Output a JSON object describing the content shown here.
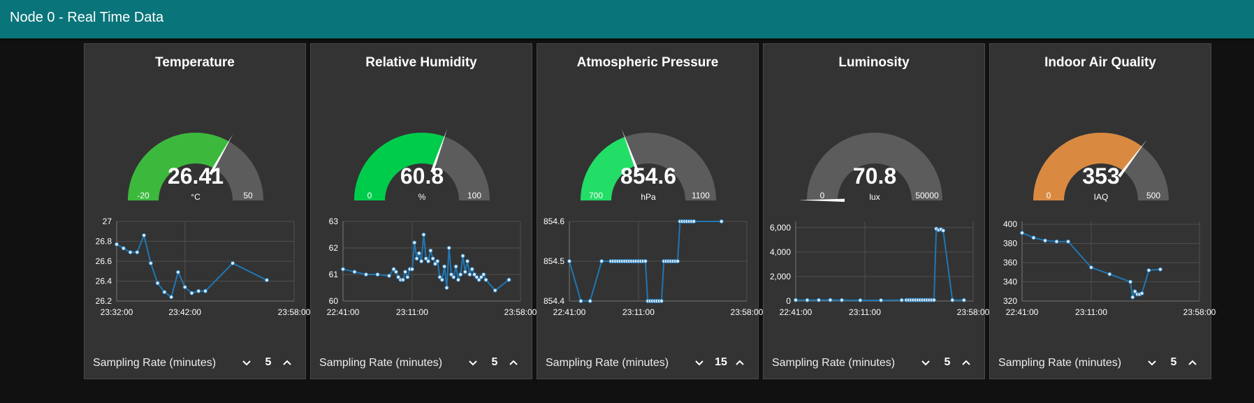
{
  "header": {
    "title": "Node 0 - Real Time Data"
  },
  "footer_label": "Sampling Rate (minutes)",
  "panels": [
    {
      "title": "Temperature",
      "gauge": {
        "value": 26.41,
        "value_text": "26.41",
        "min": -20,
        "max": 50,
        "min_text": "-20",
        "max_text": "50",
        "unit": "°C",
        "color": "#3cb93c"
      },
      "chart_data": {
        "type": "line",
        "x_ticks": [
          "23:32:00",
          "23:42:00",
          "23:58:00"
        ],
        "y_ticks": [
          "27",
          "26.8",
          "26.6",
          "26.4",
          "26.2"
        ],
        "xlim": [
          0,
          26
        ],
        "ylim": [
          26.2,
          27
        ],
        "x_tick_values": [
          0,
          10,
          26
        ],
        "y_tick_values": [
          27,
          26.8,
          26.6,
          26.4,
          26.2
        ],
        "x": [
          0,
          1,
          2,
          3,
          4,
          5,
          6,
          7,
          8,
          9,
          10,
          11,
          12,
          13,
          17,
          22
        ],
        "values": [
          26.77,
          26.73,
          26.69,
          26.69,
          26.86,
          26.58,
          26.38,
          26.29,
          26.24,
          26.49,
          26.34,
          26.28,
          26.3,
          26.3,
          26.58,
          26.41
        ],
        "color": "#1f77b4"
      },
      "sampling_rate": "5"
    },
    {
      "title": "Relative Humidity",
      "gauge": {
        "value": 60.8,
        "value_text": "60.8",
        "min": 0,
        "max": 100,
        "min_text": "0",
        "max_text": "100",
        "unit": "%",
        "color": "#00cc4c"
      },
      "chart_data": {
        "type": "line",
        "x_ticks": [
          "22:41:00",
          "23:11:00",
          "23:58:00"
        ],
        "y_ticks": [
          "63",
          "62",
          "61",
          "60"
        ],
        "xlim": [
          0,
          77
        ],
        "ylim": [
          60,
          63
        ],
        "x_tick_values": [
          0,
          30,
          77
        ],
        "y_tick_values": [
          63,
          62,
          61,
          60
        ],
        "x": [
          0,
          5,
          10,
          15,
          20,
          22,
          23,
          24,
          25,
          26,
          27,
          28,
          29,
          30,
          31,
          32,
          33,
          34,
          35,
          36,
          37,
          38,
          39,
          40,
          41,
          42,
          43,
          44,
          45,
          46,
          47,
          48,
          49,
          50,
          51,
          52,
          53,
          54,
          55,
          56,
          57,
          58,
          59,
          60,
          61,
          62,
          66,
          72
        ],
        "values": [
          61.2,
          61.1,
          61.0,
          61.0,
          60.95,
          61.2,
          61.1,
          60.9,
          60.8,
          60.8,
          61.1,
          60.9,
          61.2,
          61.2,
          62.2,
          61.6,
          61.8,
          61.5,
          62.5,
          61.6,
          61.5,
          61.9,
          61.6,
          61.4,
          61.5,
          60.9,
          60.8,
          61.3,
          60.5,
          62.0,
          61.0,
          60.9,
          61.3,
          60.8,
          61.0,
          61.7,
          61.1,
          61.5,
          61.0,
          61.2,
          61.0,
          60.9,
          60.8,
          60.9,
          61.0,
          60.8,
          60.4,
          60.8
        ],
        "color": "#1f77b4"
      },
      "sampling_rate": "5"
    },
    {
      "title": "Atmospheric Pressure",
      "gauge": {
        "value": 854.6,
        "value_text": "854.6",
        "min": 700,
        "max": 1100,
        "min_text": "700",
        "max_text": "1100",
        "unit": "hPa",
        "color": "#22dd66"
      },
      "chart_data": {
        "type": "line",
        "x_ticks": [
          "22:41:00",
          "23:11:00",
          "23:58:00"
        ],
        "y_ticks": [
          "854.6",
          "854.5",
          "854.4"
        ],
        "xlim": [
          0,
          77
        ],
        "ylim": [
          854.4,
          854.6
        ],
        "x_tick_values": [
          0,
          30,
          77
        ],
        "y_tick_values": [
          854.6,
          854.5,
          854.4
        ],
        "x": [
          0,
          5,
          9,
          14,
          18,
          19,
          20,
          21,
          22,
          23,
          24,
          25,
          26,
          27,
          28,
          29,
          30,
          31,
          32,
          33,
          34,
          35,
          36,
          37,
          38,
          39,
          40,
          41,
          42,
          43,
          44,
          45,
          46,
          47,
          48,
          49,
          50,
          51,
          52,
          53,
          54,
          66
        ],
        "values": [
          854.5,
          854.4,
          854.4,
          854.5,
          854.5,
          854.5,
          854.5,
          854.5,
          854.5,
          854.5,
          854.5,
          854.5,
          854.5,
          854.5,
          854.5,
          854.5,
          854.5,
          854.5,
          854.5,
          854.5,
          854.4,
          854.4,
          854.4,
          854.4,
          854.4,
          854.4,
          854.4,
          854.5,
          854.5,
          854.5,
          854.5,
          854.5,
          854.5,
          854.5,
          854.6,
          854.6,
          854.6,
          854.6,
          854.6,
          854.6,
          854.6,
          854.6
        ],
        "color": "#1f77b4"
      },
      "sampling_rate": "15"
    },
    {
      "title": "Luminosity",
      "gauge": {
        "value": 70.8,
        "value_text": "70.8",
        "min": 0,
        "max": 50000,
        "min_text": "0",
        "max_text": "50000",
        "unit": "lux",
        "color": "#aaaaaa"
      },
      "chart_data": {
        "type": "line",
        "x_ticks": [
          "22:41:00",
          "23:11:00",
          "23:58:00"
        ],
        "y_ticks": [
          "6,000",
          "4,000",
          "2,000",
          "0"
        ],
        "xlim": [
          0,
          77
        ],
        "ylim": [
          0,
          6500
        ],
        "x_tick_values": [
          0,
          30,
          77
        ],
        "y_tick_values": [
          6000,
          4000,
          2000,
          0
        ],
        "x": [
          0,
          5,
          10,
          15,
          20,
          28,
          37,
          46,
          48,
          49,
          50,
          51,
          52,
          53,
          54,
          55,
          56,
          57,
          58,
          59,
          60,
          61,
          62,
          63,
          64,
          68,
          73
        ],
        "values": [
          80,
          70,
          75,
          80,
          70,
          60,
          60,
          70,
          80,
          80,
          80,
          80,
          80,
          80,
          80,
          80,
          80,
          80,
          80,
          80,
          80,
          5900,
          5800,
          5850,
          5750,
          70,
          71
        ],
        "color": "#1f77b4"
      },
      "sampling_rate": "5"
    },
    {
      "title": "Indoor Air Quality",
      "gauge": {
        "value": 353,
        "value_text": "353",
        "min": 0,
        "max": 500,
        "min_text": "0",
        "max_text": "500",
        "unit": "IAQ",
        "color": "#d98a40"
      },
      "chart_data": {
        "type": "line",
        "x_ticks": [
          "22:41:00",
          "23:11:00",
          "23:58:00"
        ],
        "y_ticks": [
          "400",
          "380",
          "360",
          "340",
          "320"
        ],
        "xlim": [
          0,
          77
        ],
        "ylim": [
          320,
          403
        ],
        "x_tick_values": [
          0,
          30,
          77
        ],
        "y_tick_values": [
          400,
          380,
          360,
          340,
          320
        ],
        "x": [
          0,
          5,
          10,
          15,
          20,
          30,
          38,
          47,
          48,
          49,
          50,
          51,
          52,
          55,
          60
        ],
        "values": [
          391,
          386,
          383,
          382,
          382,
          355,
          348,
          340,
          324,
          330,
          327,
          327,
          328,
          352,
          353
        ],
        "color": "#1f77b4"
      },
      "sampling_rate": "5"
    }
  ]
}
